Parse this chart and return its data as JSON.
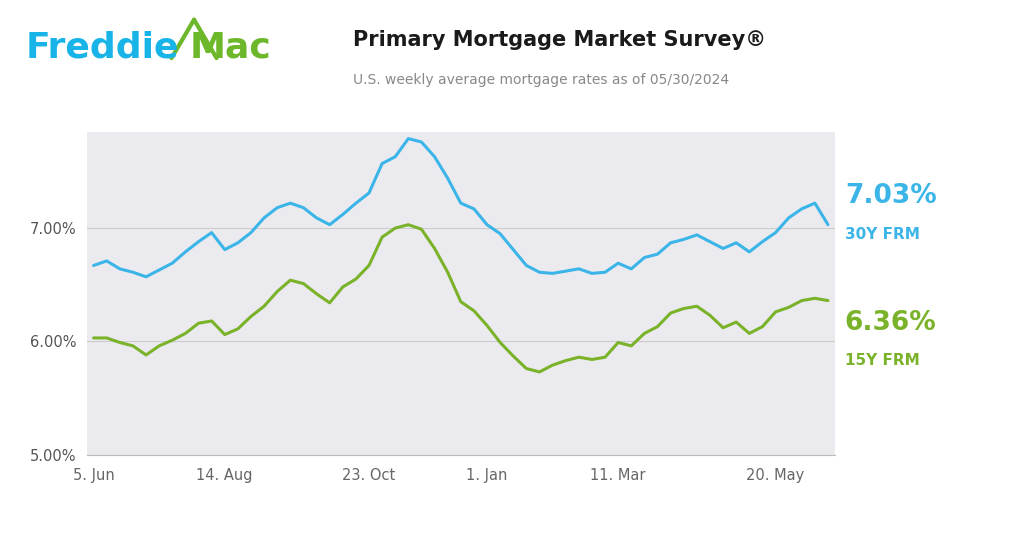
{
  "title": "Primary Mortgage Market Survey®",
  "subtitle": "U.S. weekly average mortgage rates as of 05/30/2024",
  "title_color": "#1a1a1a",
  "subtitle_color": "#888888",
  "background_color": "#ffffff",
  "plot_bg_color": "#ebebef",
  "grid_color": "#cccccc",
  "blue_color": "#3bb5e8",
  "green_color": "#7ab22a",
  "freddie_blue": "#18b4e8",
  "freddie_green": "#6db72a",
  "label_30y": "7.03%",
  "label_30y_sub": "30Y FRM",
  "label_15y": "6.36%",
  "label_15y_sub": "15Y FRM",
  "ylim": [
    5.0,
    7.85
  ],
  "yticks": [
    5.0,
    6.0,
    7.0
  ],
  "xtick_labels": [
    "5. Jun",
    "14. Aug",
    "23. Oct",
    "1. Jan",
    "11. Mar",
    "20. May"
  ],
  "xtick_indices": [
    0,
    10,
    21,
    30,
    40,
    52
  ],
  "rate_30y": [
    6.67,
    6.71,
    6.64,
    6.61,
    6.57,
    6.63,
    6.69,
    6.79,
    6.88,
    6.96,
    6.81,
    6.87,
    6.96,
    7.09,
    7.18,
    7.22,
    7.18,
    7.09,
    7.03,
    7.12,
    7.22,
    7.31,
    7.57,
    7.63,
    7.79,
    7.76,
    7.63,
    7.44,
    7.22,
    7.17,
    7.03,
    6.95,
    6.81,
    6.67,
    6.61,
    6.6,
    6.62,
    6.64,
    6.6,
    6.61,
    6.69,
    6.64,
    6.74,
    6.77,
    6.87,
    6.9,
    6.94,
    6.88,
    6.82,
    6.87,
    6.79,
    6.88,
    6.96,
    7.09,
    7.17,
    7.22,
    7.03
  ],
  "rate_15y": [
    6.03,
    6.03,
    5.99,
    5.96,
    5.88,
    5.96,
    6.01,
    6.07,
    6.16,
    6.18,
    6.06,
    6.11,
    6.22,
    6.31,
    6.44,
    6.54,
    6.51,
    6.42,
    6.34,
    6.48,
    6.55,
    6.67,
    6.92,
    7.0,
    7.03,
    6.99,
    6.82,
    6.61,
    6.35,
    6.27,
    6.14,
    5.99,
    5.87,
    5.76,
    5.73,
    5.79,
    5.83,
    5.86,
    5.84,
    5.86,
    5.99,
    5.96,
    6.07,
    6.13,
    6.25,
    6.29,
    6.31,
    6.23,
    6.12,
    6.17,
    6.07,
    6.13,
    6.26,
    6.3,
    6.36,
    6.38,
    6.36
  ]
}
